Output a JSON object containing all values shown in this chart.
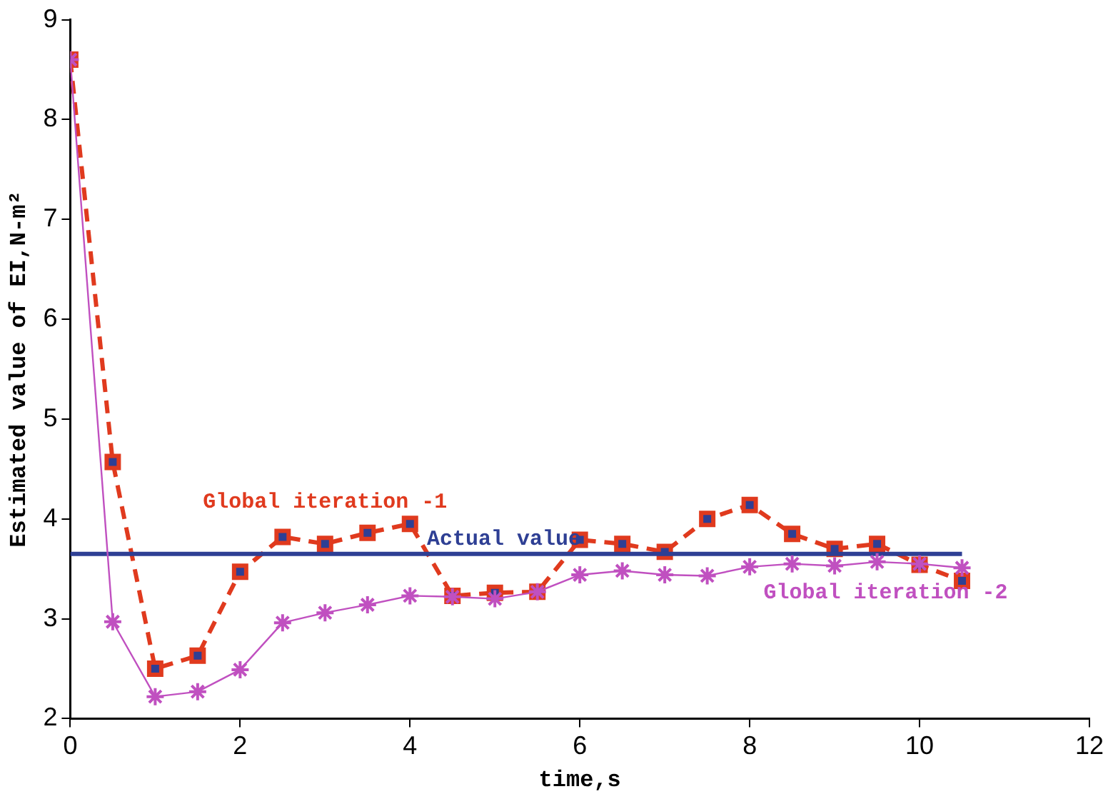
{
  "chart_data": {
    "type": "line",
    "xlabel": "time,s",
    "ylabel": "Estimated value of EI,N-m²",
    "xlim": [
      0,
      12
    ],
    "xticks": [
      0,
      2,
      4,
      6,
      8,
      10,
      12
    ],
    "ylim": [
      2,
      9
    ],
    "yticks": [
      2,
      3,
      4,
      5,
      6,
      7,
      8,
      9
    ],
    "grid": false,
    "legend": false,
    "x": [
      0,
      0.5,
      1,
      1.5,
      2,
      2.5,
      3,
      3.5,
      4,
      4.5,
      5,
      5.5,
      6,
      6.5,
      7,
      7.5,
      8,
      8.5,
      9,
      9.5,
      10,
      10.5
    ],
    "series": [
      {
        "name": "Global iteration -1",
        "color": "#e03a1e",
        "marker": "square",
        "line_style": "dashed",
        "values": [
          8.6,
          4.57,
          2.5,
          2.63,
          3.47,
          3.82,
          3.75,
          3.86,
          3.95,
          3.23,
          3.26,
          3.27,
          3.79,
          3.75,
          3.67,
          4.0,
          4.14,
          3.85,
          3.7,
          3.75,
          3.54,
          3.38
        ]
      },
      {
        "name": "Actual value",
        "color": "#2e3f94",
        "marker": "none",
        "line_style": "solid",
        "x": [
          0,
          10.5
        ],
        "values": [
          3.65,
          3.65
        ]
      },
      {
        "name": "Global iteration -2",
        "color": "#c050c0",
        "marker": "cross",
        "line_style": "solid",
        "values": [
          8.6,
          2.97,
          2.22,
          2.27,
          2.49,
          2.96,
          3.06,
          3.14,
          3.23,
          3.22,
          3.2,
          3.27,
          3.44,
          3.48,
          3.44,
          3.43,
          3.52,
          3.55,
          3.53,
          3.57,
          3.55,
          3.51
        ]
      }
    ]
  }
}
